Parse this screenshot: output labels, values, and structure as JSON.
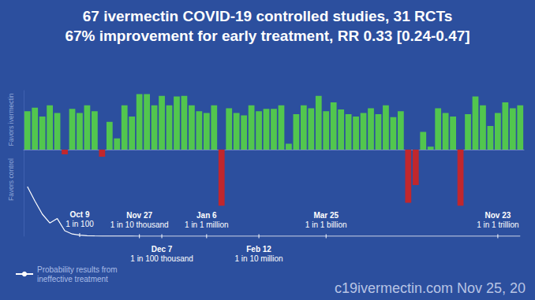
{
  "chart_data": [
    {
      "type": "bar",
      "title": "67 ivermectin COVID-19 controlled studies, 31 RCTs",
      "subtitle": "67% improvement for early treatment, RR 0.33 [0.24-0.47]",
      "ylabel": {
        "positive": "Favors ivermectin",
        "negative": "Favors control"
      },
      "categories": [
        null,
        null,
        null,
        null,
        null,
        null,
        null,
        null,
        null,
        null,
        null,
        null,
        null,
        null,
        null,
        null,
        null,
        null,
        null,
        null,
        null,
        null,
        null,
        null,
        null,
        null,
        null,
        null,
        null,
        null,
        null,
        null,
        null,
        null,
        null,
        null,
        null,
        null,
        null,
        null,
        null,
        null,
        null,
        null,
        null,
        null,
        null,
        null,
        null,
        null,
        null,
        null,
        null,
        null,
        null,
        null,
        null,
        null,
        null,
        null,
        null,
        null,
        null,
        null,
        null,
        null,
        null
      ],
      "values": [
        65,
        71,
        56,
        75,
        62,
        -8,
        69,
        62,
        75,
        65,
        -12,
        47,
        19,
        75,
        56,
        94,
        94,
        75,
        91,
        75,
        90,
        91,
        75,
        65,
        62,
        75,
        -95,
        70,
        62,
        58,
        75,
        65,
        69,
        69,
        75,
        10,
        60,
        75,
        70,
        91,
        65,
        80,
        68,
        60,
        56,
        62,
        70,
        60,
        75,
        55,
        65,
        -90,
        -60,
        30,
        5,
        70,
        62,
        56,
        -95,
        60,
        90,
        75,
        40,
        62,
        80,
        70,
        75
      ],
      "colors": [
        "#52c64e",
        "#52c64e",
        "#52c64e",
        "#52c64e",
        "#52c64e",
        "#c1272d",
        "#52c64e",
        "#52c64e",
        "#52c64e",
        "#52c64e",
        "#c1272d",
        "#52c64e",
        "#52c64e",
        "#52c64e",
        "#52c64e",
        "#52c64e",
        "#52c64e",
        "#52c64e",
        "#52c64e",
        "#52c64e",
        "#52c64e",
        "#52c64e",
        "#52c64e",
        "#52c64e",
        "#52c64e",
        "#52c64e",
        "#c1272d",
        "#52c64e",
        "#52c64e",
        "#52c64e",
        "#52c64e",
        "#52c64e",
        "#52c64e",
        "#52c64e",
        "#52c64e",
        "#52c64e",
        "#52c64e",
        "#52c64e",
        "#52c64e",
        "#52c64e",
        "#52c64e",
        "#52c64e",
        "#52c64e",
        "#52c64e",
        "#52c64e",
        "#52c64e",
        "#52c64e",
        "#52c64e",
        "#52c64e",
        "#52c64e",
        "#52c64e",
        "#c1272d",
        "#c1272d",
        "#52c64e",
        "#52c64e",
        "#52c64e",
        "#52c64e",
        "#52c64e",
        "#c1272d",
        "#52c64e",
        "#52c64e",
        "#52c64e",
        "#52c64e",
        "#52c64e",
        "#52c64e",
        "#52c64e",
        "#52c64e"
      ],
      "ylim": [
        -100,
        100
      ],
      "grid": false,
      "tick_labels": false
    },
    {
      "type": "line",
      "categories": [
        null,
        null,
        null,
        null,
        null,
        null,
        null,
        null,
        null,
        null,
        null,
        null,
        null,
        null,
        null,
        null,
        null,
        null,
        null,
        null,
        null,
        null,
        null,
        null,
        null,
        null,
        null,
        null,
        null,
        null,
        null,
        null,
        null,
        null,
        null,
        null,
        null,
        null,
        null,
        null,
        null,
        null,
        null,
        null,
        null,
        null,
        null,
        null,
        null,
        null,
        null,
        null,
        null,
        null,
        null,
        null,
        null,
        null,
        null,
        null,
        null,
        null,
        null,
        null,
        null,
        null,
        null
      ],
      "series": [
        {
          "name": "Probability results from ineffective treatment",
          "color": "#ffffff",
          "values": [
            0.45,
            0.32,
            0.2,
            0.12,
            0.16,
            0.05,
            0.02,
            0.01,
            0.004,
            0.002,
            0.001,
            0.0006,
            0.0004,
            0.0003,
            0.0002,
            0.0001,
            3e-05,
            2e-05,
            1e-05,
            7e-06,
            5e-06,
            3e-06,
            2e-06,
            1.5e-06,
            1e-06,
            7e-07,
            5e-07,
            4e-07,
            3e-07,
            2.5e-07,
            2e-07,
            1e-07,
            8e-08,
            7e-08,
            6e-08,
            3e-08,
            1e-08,
            6e-09,
            3e-09,
            2e-09,
            1e-09,
            8e-10,
            6e-10,
            5e-10,
            4e-10,
            3e-10,
            2e-10,
            1.5e-10,
            1e-10,
            8e-11,
            6e-11,
            4e-11,
            3e-11,
            2e-11,
            1.5e-11,
            1e-11,
            8e-12,
            6e-12,
            5e-12,
            4e-12,
            3e-12,
            2e-12,
            1.5e-12,
            1e-12,
            8e-13,
            6e-13,
            5e-13
          ]
        }
      ],
      "ylim": [
        0,
        0.5
      ],
      "grid": false,
      "tick_labels": false,
      "legend": "bottom-left",
      "annotations": [
        {
          "x": 7,
          "date": "Oct 9",
          "text": "1 in 100"
        },
        {
          "x": 15,
          "date": "Nov 27",
          "text": "1 in 10 thousand"
        },
        {
          "x": 18,
          "date": "Dec 7",
          "text": "1 in 100 thousand"
        },
        {
          "x": 24,
          "date": "Jan 6",
          "text": "1 in 1 million"
        },
        {
          "x": 31,
          "date": "Feb 12",
          "text": "1 in 10 million"
        },
        {
          "x": 40,
          "date": "Mar 25",
          "text": "1 in 1 billion"
        },
        {
          "x": 63,
          "date": "Nov 23",
          "text": "1 in 1 trillion"
        }
      ],
      "source": "c19ivermectin.com Nov 25, 20"
    }
  ]
}
